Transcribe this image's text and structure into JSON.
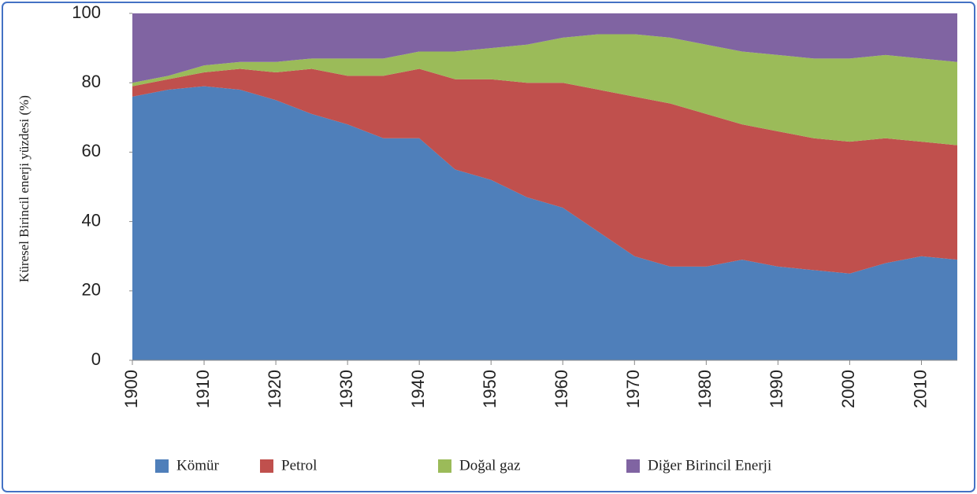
{
  "chart_data": {
    "type": "stacked-area",
    "ylabel": "Küresel Birincil enerji yüzdesi (%)",
    "x": [
      1900,
      1905,
      1910,
      1915,
      1920,
      1925,
      1930,
      1935,
      1940,
      1945,
      1950,
      1955,
      1960,
      1965,
      1970,
      1975,
      1980,
      1985,
      1990,
      1995,
      2000,
      2005,
      2010,
      2015
    ],
    "series": [
      {
        "name": "Kömür",
        "color": "#4f7fba",
        "values": [
          76,
          78,
          79,
          78,
          75,
          71,
          68,
          64,
          64,
          55,
          52,
          47,
          44,
          37,
          30,
          27,
          27,
          29,
          27,
          26,
          25,
          28,
          30,
          29
        ]
      },
      {
        "name": "Petrol",
        "color": "#c0504d",
        "values": [
          3,
          3,
          4,
          6,
          8,
          13,
          14,
          18,
          20,
          26,
          29,
          33,
          36,
          41,
          46,
          47,
          44,
          39,
          39,
          38,
          38,
          36,
          33,
          33
        ]
      },
      {
        "name": "Doğal gaz",
        "color": "#9bbb59",
        "values": [
          1,
          1,
          2,
          2,
          3,
          3,
          5,
          5,
          5,
          8,
          9,
          11,
          13,
          16,
          18,
          19,
          20,
          21,
          22,
          23,
          24,
          24,
          24,
          24
        ]
      },
      {
        "name": "Diğer Birincil Enerji",
        "color": "#8064a2",
        "values": [
          20,
          18,
          15,
          14,
          14,
          13,
          13,
          13,
          11,
          11,
          10,
          9,
          7,
          6,
          6,
          7,
          9,
          11,
          12,
          13,
          13,
          12,
          13,
          14
        ]
      }
    ],
    "xlim": [
      1900,
      2015
    ],
    "xticks": [
      1900,
      1910,
      1920,
      1930,
      1940,
      1950,
      1960,
      1970,
      1980,
      1990,
      2000,
      2010
    ],
    "ylim": [
      0,
      100
    ],
    "yticks": [
      0,
      20,
      40,
      60,
      80,
      100
    ]
  }
}
